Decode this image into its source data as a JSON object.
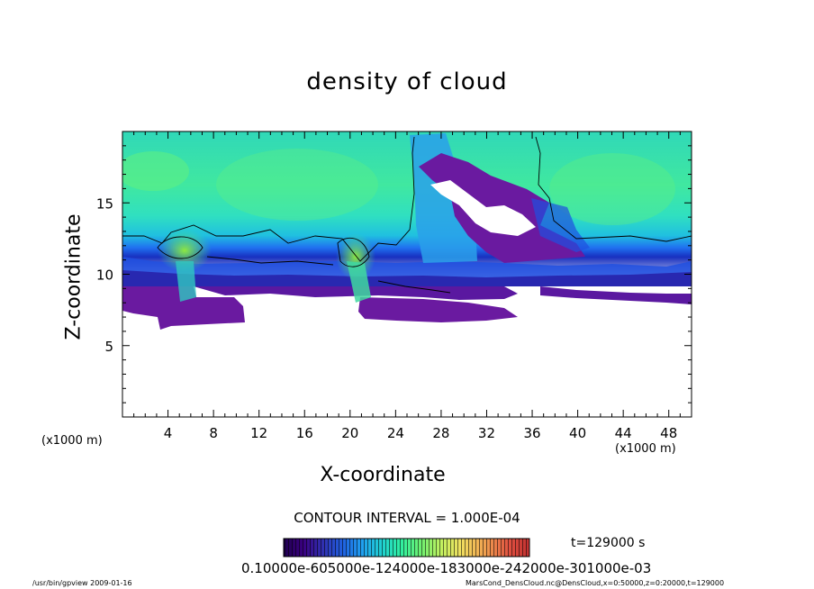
{
  "title": "density of cloud",
  "xlabel": "X-coordinate",
  "ylabel": "Z-coordinate",
  "xunit_left": "(x1000 m)",
  "xunit_right": "(x1000 m)",
  "contour_interval": "CONTOUR INTERVAL = 1.000E-04",
  "time_label": "t=129000 s",
  "colorbar_ticks": "0.10000e-605000e-124000e-183000e-242000e-301000e-03",
  "footer_left": "/usr/bin/gpview   2009-01-16",
  "footer_right": "MarsCond_DensCloud.nc@DensCloud,x=0:50000,z=0:20000,t=129000",
  "colors": {
    "colorbar": [
      "#200050",
      "#3a0080",
      "#5020a0",
      "#3040c0",
      "#2060e0",
      "#2090f0",
      "#20c0e0",
      "#20e0c0",
      "#30f0a0",
      "#60f080",
      "#a0f060",
      "#d0f060",
      "#f0e060",
      "#f0b060",
      "#f08050",
      "#e05040",
      "#c03030"
    ]
  },
  "chart_data": {
    "type": "heatmap",
    "title": "density of cloud",
    "xlabel": "X-coordinate",
    "ylabel": "Z-coordinate",
    "xlim": [
      0,
      50
    ],
    "ylim": [
      0,
      20
    ],
    "x_ticks": [
      4,
      8,
      12,
      16,
      20,
      24,
      28,
      32,
      36,
      40,
      44,
      48
    ],
    "y_ticks": [
      5,
      10,
      15
    ],
    "x_tick_labels": [
      "4",
      "8",
      "12",
      "16",
      "20",
      "24",
      "28",
      "32",
      "36",
      "40",
      "44",
      "48"
    ],
    "y_tick_labels": [
      "5",
      "10",
      "15"
    ],
    "contour_interval": 0.0001,
    "time": 129000,
    "grid": false,
    "cloud_regions": [
      {
        "name": "upper-green-layer",
        "x": [
          0,
          50
        ],
        "z": [
          12,
          20
        ],
        "level": "green"
      },
      {
        "name": "cyan-transition",
        "x": [
          0,
          50
        ],
        "z": [
          10,
          12
        ],
        "level": "cyan"
      },
      {
        "name": "blue-base",
        "x": [
          0,
          50
        ],
        "z": [
          9.5,
          10.5
        ],
        "level": "blue"
      },
      {
        "name": "purple-base-left",
        "x": [
          0,
          11
        ],
        "z": [
          6.5,
          9.5
        ],
        "level": "purple"
      },
      {
        "name": "purple-base-mid",
        "x": [
          20,
          35
        ],
        "z": [
          6.8,
          9.5
        ],
        "level": "purple"
      },
      {
        "name": "purple-plume",
        "x": [
          25,
          38
        ],
        "z": [
          10,
          19
        ],
        "level": "purple"
      },
      {
        "name": "green-cell-left",
        "x": [
          4,
          8
        ],
        "z": [
          10.5,
          13
        ],
        "level": "bright-green"
      },
      {
        "name": "green-cell-mid",
        "x": [
          19,
          22
        ],
        "z": [
          9.5,
          12
        ],
        "level": "bright-green"
      }
    ]
  }
}
